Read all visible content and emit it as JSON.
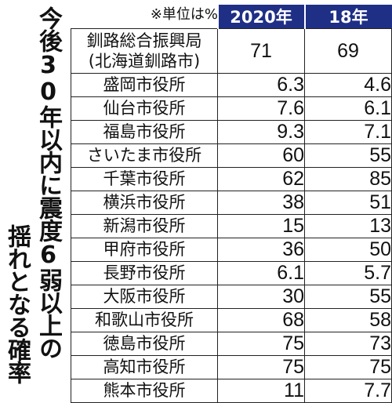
{
  "chart_data": {
    "type": "table",
    "title_lines": [
      "今後30年以内に震度6弱以上の",
      "揺れとなる確率"
    ],
    "unit_note": "※単位は%",
    "columns": [
      "2020年",
      "18年"
    ],
    "rows": [
      {
        "name": "釧路総合振興局",
        "sub": "(北海道釧路市)",
        "values": [
          "71",
          "69"
        ]
      },
      {
        "name": "盛岡市役所",
        "values": [
          "6.3",
          "4.6"
        ]
      },
      {
        "name": "仙台市役所",
        "values": [
          "7.6",
          "6.1"
        ]
      },
      {
        "name": "福島市役所",
        "values": [
          "9.3",
          "7.1"
        ]
      },
      {
        "name": "さいたま市役所",
        "values": [
          "60",
          "55"
        ]
      },
      {
        "name": "千葉市役所",
        "values": [
          "62",
          "85"
        ]
      },
      {
        "name": "横浜市役所",
        "values": [
          "38",
          "51"
        ]
      },
      {
        "name": "新潟市役所",
        "values": [
          "15",
          "13"
        ]
      },
      {
        "name": "甲府市役所",
        "values": [
          "36",
          "50"
        ]
      },
      {
        "name": "長野市役所",
        "values": [
          "6.1",
          "5.7"
        ]
      },
      {
        "name": "大阪市役所",
        "values": [
          "30",
          "55"
        ]
      },
      {
        "name": "和歌山市役所",
        "values": [
          "68",
          "58"
        ]
      },
      {
        "name": "徳島市役所",
        "values": [
          "75",
          "73"
        ]
      },
      {
        "name": "高知市役所",
        "values": [
          "75",
          "75"
        ]
      },
      {
        "name": "熊本市役所",
        "values": [
          "11",
          "7.7"
        ]
      }
    ]
  },
  "colors": {
    "header_bg": "#1f2f86",
    "header_text": "#ffffff",
    "border": "#222222"
  }
}
